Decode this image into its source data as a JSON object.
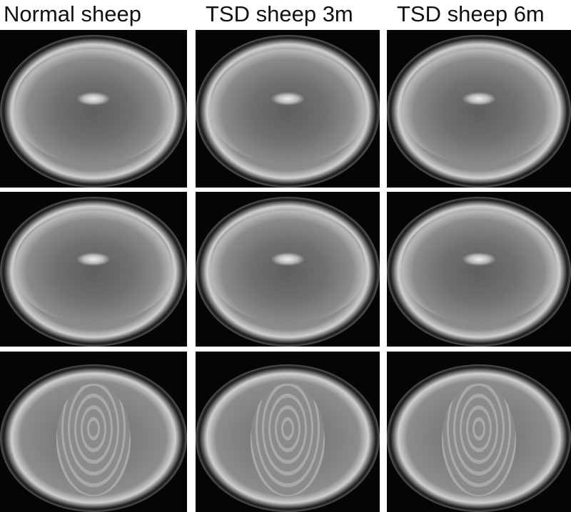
{
  "columns": [
    {
      "label": "Normal sheep"
    },
    {
      "label": "TSD sheep 3m"
    },
    {
      "label": "TSD sheep 6m"
    }
  ],
  "rows": 3,
  "image_type": "T2-weighted brain MRI panels"
}
